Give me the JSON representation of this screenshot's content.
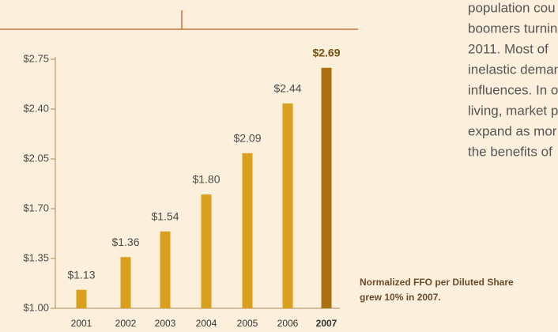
{
  "chart_data": {
    "type": "bar",
    "categories": [
      "2001",
      "2002",
      "2003",
      "2004",
      "2005",
      "2006",
      "2007"
    ],
    "values": [
      1.13,
      1.36,
      1.54,
      1.8,
      2.09,
      2.44,
      2.69
    ],
    "value_labels": [
      "$1.13",
      "$1.36",
      "$1.54",
      "$1.80",
      "$2.09",
      "$2.44",
      "$2.69"
    ],
    "colors": [
      "#d9a01e",
      "#d9a01e",
      "#d9a01e",
      "#d9a01e",
      "#d9a01e",
      "#d9a01e",
      "#a8700f"
    ],
    "highlight": [
      false,
      false,
      false,
      false,
      false,
      false,
      true
    ],
    "ylim": [
      1.0,
      2.75
    ],
    "yticks": [
      {
        "value": 1.0,
        "label": "$1.00"
      },
      {
        "value": 1.35,
        "label": "$1.35"
      },
      {
        "value": 1.7,
        "label": "$1.70"
      },
      {
        "value": 2.05,
        "label": "$2.05"
      },
      {
        "value": 2.4,
        "label": "$2.40"
      },
      {
        "value": 2.75,
        "label": "$2.75"
      }
    ]
  },
  "caption": [
    "Normalized FFO per Diluted Share",
    "grew 10% in 2007."
  ],
  "paragraph": [
    "population cou",
    "boomers turnin",
    "2011. Most of",
    "inelastic deman",
    "influences. In o",
    "living, market p",
    "expand as mor",
    "the benefits of"
  ]
}
